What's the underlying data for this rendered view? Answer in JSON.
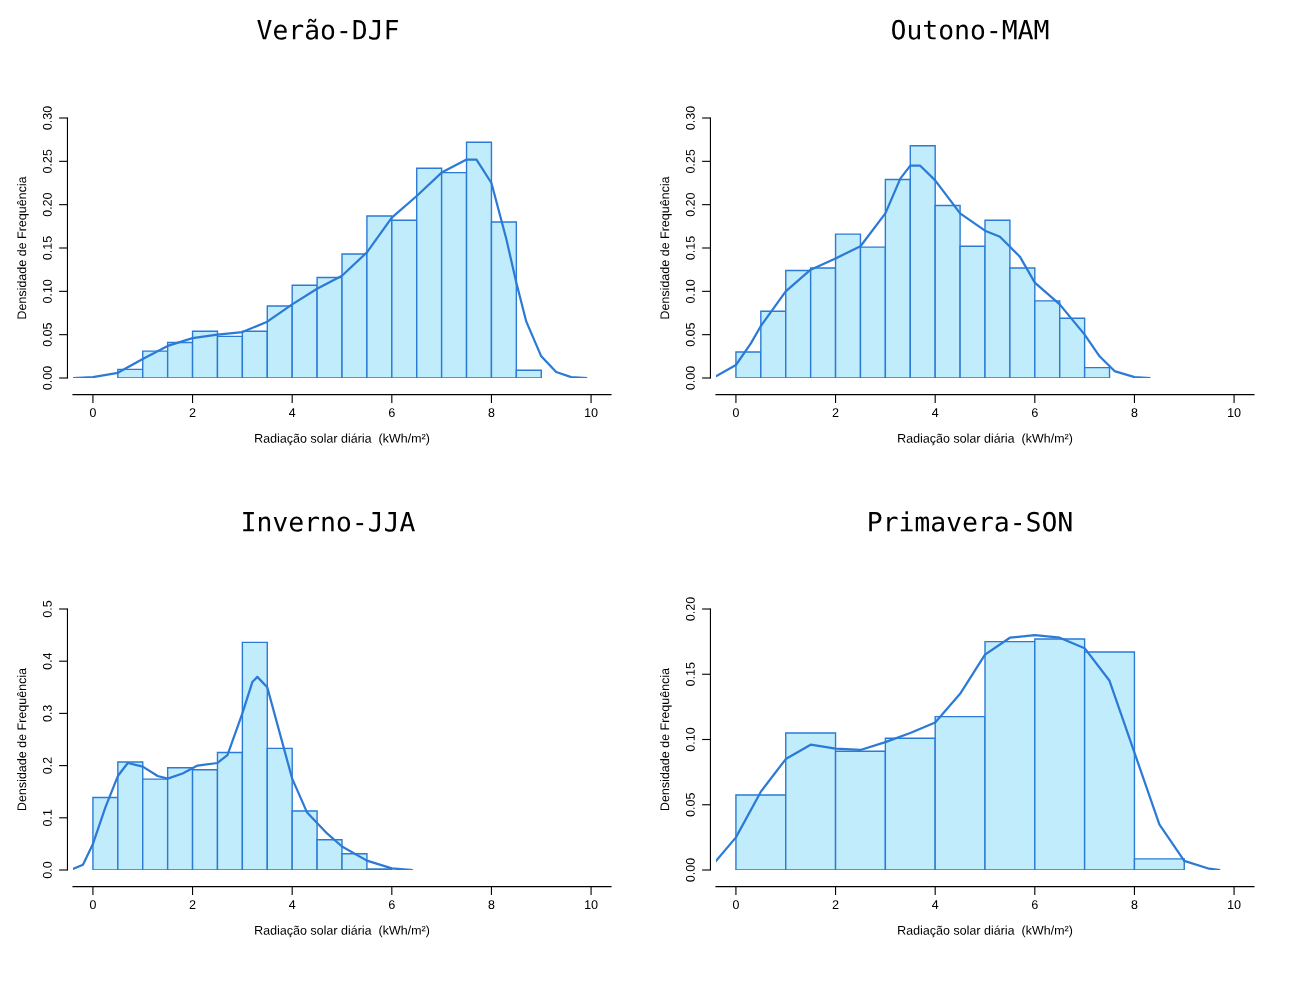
{
  "chart_data": [
    {
      "type": "histogram",
      "title": "Verão-DJF",
      "xlabel": "Radiação solar diária  (kWh/m²)",
      "ylabel": "Densidade de Frequência",
      "color": "#c0ecfc",
      "bins": [
        0.5,
        1.0,
        1.5,
        2.0,
        2.5,
        3.0,
        3.5,
        4.0,
        4.5,
        5.0,
        5.5,
        6.0,
        6.5,
        7.0,
        7.5,
        8.0,
        8.5,
        9.0
      ],
      "values": [
        0.01,
        0.031,
        0.041,
        0.054,
        0.048,
        0.054,
        0.083,
        0.107,
        0.116,
        0.143,
        0.187,
        0.182,
        0.242,
        0.237,
        0.272,
        0.18,
        0.009
      ],
      "series": [
        {
          "type": "line",
          "color": "#2a7ad6",
          "x": [
            -0.4,
            0,
            0.5,
            1,
            1.5,
            2,
            2.5,
            3,
            3.5,
            4,
            4.5,
            5,
            5.5,
            6,
            6.5,
            7,
            7.5,
            7.7,
            8,
            8.3,
            8.5,
            8.7,
            9,
            9.3,
            9.6,
            9.9
          ],
          "values": [
            0,
            0.001,
            0.006,
            0.022,
            0.037,
            0.046,
            0.05,
            0.053,
            0.065,
            0.085,
            0.103,
            0.118,
            0.145,
            0.185,
            0.21,
            0.237,
            0.252,
            0.252,
            0.225,
            0.16,
            0.11,
            0.065,
            0.025,
            0.007,
            0.001,
            0
          ]
        }
      ],
      "xlim": [
        -0.4,
        10.4
      ],
      "ylim": [
        0,
        0.3
      ],
      "xticks": [
        0,
        2,
        4,
        6,
        8,
        10
      ],
      "yticks": [
        {
          "value": 0,
          "label": "0.00"
        },
        {
          "value": 0.05,
          "label": "0.05"
        },
        {
          "value": 0.1,
          "label": "0.10"
        },
        {
          "value": 0.15,
          "label": "0.15"
        },
        {
          "value": 0.2,
          "label": "0.20"
        },
        {
          "value": 0.25,
          "label": "0.25"
        },
        {
          "value": 0.3,
          "label": "0.30"
        }
      ]
    },
    {
      "type": "histogram",
      "title": "Outono-MAM",
      "xlabel": "Radiação solar diária  (kWh/m²)",
      "ylabel": "Densidade de Frequência",
      "color": "#c0ecfc",
      "bins": [
        0,
        0.5,
        1.0,
        1.5,
        2.0,
        2.5,
        3.0,
        3.5,
        4.0,
        4.5,
        5.0,
        5.5,
        6.0,
        6.5,
        7.0,
        7.5
      ],
      "values": [
        0.03,
        0.077,
        0.124,
        0.127,
        0.166,
        0.151,
        0.229,
        0.268,
        0.199,
        0.152,
        0.182,
        0.127,
        0.089,
        0.069,
        0.012
      ],
      "series": [
        {
          "type": "line",
          "color": "#2a7ad6",
          "x": [
            -0.4,
            0,
            0.3,
            0.5,
            1,
            1.5,
            2,
            2.5,
            3,
            3.3,
            3.5,
            3.7,
            4,
            4.5,
            5,
            5.3,
            5.7,
            6,
            6.5,
            7,
            7.3,
            7.6,
            8,
            8.3
          ],
          "values": [
            0.002,
            0.015,
            0.04,
            0.06,
            0.1,
            0.125,
            0.138,
            0.152,
            0.19,
            0.23,
            0.245,
            0.245,
            0.228,
            0.19,
            0.17,
            0.163,
            0.14,
            0.11,
            0.085,
            0.05,
            0.025,
            0.008,
            0.001,
            0
          ]
        }
      ],
      "xlim": [
        -0.4,
        10.4
      ],
      "ylim": [
        0,
        0.3
      ],
      "xticks": [
        0,
        2,
        4,
        6,
        8,
        10
      ],
      "yticks": [
        {
          "value": 0,
          "label": "0.00"
        },
        {
          "value": 0.05,
          "label": "0.05"
        },
        {
          "value": 0.1,
          "label": "0.10"
        },
        {
          "value": 0.15,
          "label": "0.15"
        },
        {
          "value": 0.2,
          "label": "0.20"
        },
        {
          "value": 0.25,
          "label": "0.25"
        },
        {
          "value": 0.3,
          "label": "0.30"
        }
      ]
    },
    {
      "type": "histogram",
      "title": "Inverno-JJA",
      "xlabel": "Radiação solar diária  (kWh/m²)",
      "ylabel": "Densidade de Frequência",
      "color": "#c0ecfc",
      "bins": [
        0,
        0.5,
        1.0,
        1.5,
        2.0,
        2.5,
        3.0,
        3.5,
        4.0,
        4.5,
        5.0,
        5.5,
        6.0
      ],
      "values": [
        0.139,
        0.207,
        0.174,
        0.196,
        0.192,
        0.225,
        0.436,
        0.233,
        0.113,
        0.058,
        0.031,
        0.002
      ],
      "series": [
        {
          "type": "line",
          "color": "#2a7ad6",
          "x": [
            -0.4,
            -0.2,
            0,
            0.25,
            0.5,
            0.7,
            1,
            1.3,
            1.5,
            1.8,
            2.1,
            2.5,
            2.7,
            3,
            3.2,
            3.3,
            3.5,
            3.7,
            4,
            4.3,
            4.7,
            5,
            5.5,
            6,
            6.4
          ],
          "values": [
            0.002,
            0.01,
            0.05,
            0.12,
            0.18,
            0.205,
            0.198,
            0.18,
            0.175,
            0.185,
            0.2,
            0.205,
            0.22,
            0.3,
            0.36,
            0.37,
            0.35,
            0.28,
            0.175,
            0.11,
            0.07,
            0.045,
            0.018,
            0.003,
            0
          ]
        }
      ],
      "xlim": [
        -0.4,
        10.4
      ],
      "ylim": [
        0,
        0.5
      ],
      "xticks": [
        0,
        2,
        4,
        6,
        8,
        10
      ],
      "yticks": [
        {
          "value": 0,
          "label": "0.0"
        },
        {
          "value": 0.1,
          "label": "0.1"
        },
        {
          "value": 0.2,
          "label": "0.2"
        },
        {
          "value": 0.3,
          "label": "0.3"
        },
        {
          "value": 0.4,
          "label": "0.4"
        },
        {
          "value": 0.5,
          "label": "0.5"
        }
      ]
    },
    {
      "type": "histogram",
      "title": "Primavera-SON",
      "xlabel": "Radiação solar diária  (kWh/m²)",
      "ylabel": "Densidade de Frequência",
      "color": "#c0ecfc",
      "bins": [
        0,
        1,
        2,
        3,
        4,
        5,
        6,
        7,
        8,
        9
      ],
      "values": [
        0.0575,
        0.105,
        0.091,
        0.101,
        0.1175,
        0.175,
        0.177,
        0.167,
        0.0085
      ],
      "series": [
        {
          "type": "line",
          "color": "#2a7ad6",
          "x": [
            -0.4,
            0,
            0.5,
            1,
            1.5,
            2,
            2.5,
            3,
            3.5,
            4,
            4.5,
            5,
            5.5,
            6,
            6.5,
            7,
            7.5,
            8,
            8.5,
            9,
            9.5,
            9.7
          ],
          "values": [
            0.007,
            0.025,
            0.06,
            0.085,
            0.096,
            0.093,
            0.092,
            0.098,
            0.105,
            0.113,
            0.135,
            0.165,
            0.178,
            0.18,
            0.178,
            0.17,
            0.145,
            0.09,
            0.035,
            0.007,
            0.001,
            0
          ]
        }
      ],
      "xlim": [
        -0.4,
        10.4
      ],
      "ylim": [
        0,
        0.2
      ],
      "xticks": [
        0,
        2,
        4,
        6,
        8,
        10
      ],
      "yticks": [
        {
          "value": 0,
          "label": "0.00"
        },
        {
          "value": 0.05,
          "label": "0.05"
        },
        {
          "value": 0.1,
          "label": "0.10"
        },
        {
          "value": 0.15,
          "label": "0.15"
        },
        {
          "value": 0.2,
          "label": "0.20"
        }
      ]
    }
  ]
}
